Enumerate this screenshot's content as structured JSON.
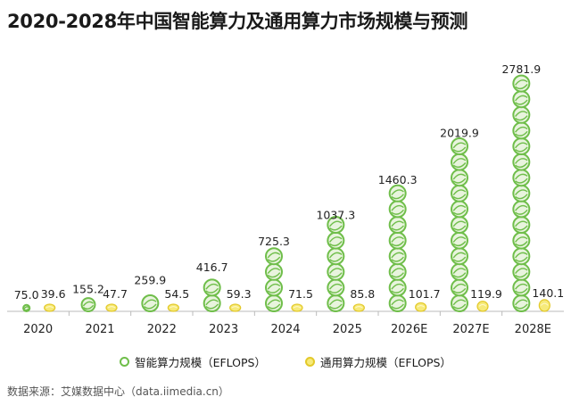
{
  "title": "2020-2028年中国智能算力及通用算力市场规模与预测",
  "legend": {
    "series1": "智能算力规模（EFLOPS）",
    "series2": "通用算力规模（EFLOPS）"
  },
  "source": "数据来源：艾媒数据中心（data.iimedia.cn）",
  "colors": {
    "intelligent": "#6fbe4a",
    "general": "#f1d63a",
    "axis": "#bbbbbb"
  },
  "chart_data": {
    "type": "bar",
    "categories": [
      "2020",
      "2021",
      "2022",
      "2023",
      "2024",
      "2025",
      "2026E",
      "2027E",
      "2028E"
    ],
    "series": [
      {
        "name": "智能算力规模（EFLOPS）",
        "values": [
          75.0,
          155.2,
          259.9,
          416.7,
          725.3,
          1037.3,
          1460.3,
          2019.9,
          2781.9
        ],
        "labels": [
          "75.0",
          "155.2",
          "259.9",
          "416.7",
          "725.3",
          "1037.3",
          "1460.3",
          "2019.9",
          "2781.9"
        ]
      },
      {
        "name": "通用算力规模（EFLOPS）",
        "values": [
          39.6,
          47.7,
          54.5,
          59.3,
          71.5,
          85.8,
          101.7,
          119.9,
          140.1
        ],
        "labels": [
          "39.6",
          "47.7",
          "54.5",
          "59.3",
          "71.5",
          "85.8",
          "101.7",
          "119.9",
          "140.1"
        ]
      }
    ],
    "ylim": [
      0,
      2781.9
    ]
  }
}
